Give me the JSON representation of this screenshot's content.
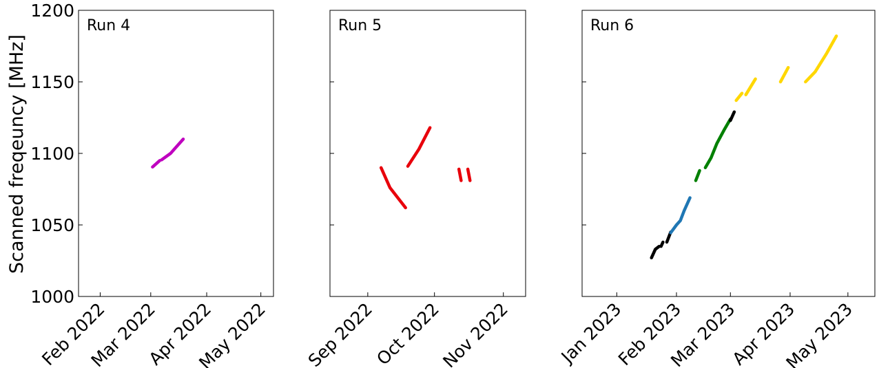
{
  "chart_data": {
    "type": "line",
    "ylabel": "Scanned freqeuncy [MHz]",
    "ylim": [
      1000,
      1200
    ],
    "yticks": [
      1000,
      1050,
      1100,
      1150,
      1200
    ],
    "grid": false,
    "panels": [
      {
        "title": "Run 4",
        "xlim": [
          "2022-01-20",
          "2022-05-08"
        ],
        "xticks": [
          {
            "date": "2022-02-01",
            "label": "Feb 2022"
          },
          {
            "date": "2022-03-01",
            "label": "Mar 2022"
          },
          {
            "date": "2022-04-01",
            "label": "Apr 2022"
          },
          {
            "date": "2022-05-01",
            "label": "May 2022"
          }
        ],
        "segments": [
          {
            "color": "#bf00bf",
            "points": [
              [
                "2022-03-02",
                1090.5
              ],
              [
                "2022-03-06",
                1095.0
              ]
            ]
          },
          {
            "color": "#bf00bf",
            "points": [
              [
                "2022-03-07",
                1095.5
              ],
              [
                "2022-03-12",
                1100.0
              ],
              [
                "2022-03-19",
                1110.0
              ]
            ]
          }
        ]
      },
      {
        "title": "Run 5",
        "xlim": [
          "2022-08-15",
          "2022-11-11"
        ],
        "xticks": [
          {
            "date": "2022-09-01",
            "label": "Sep 2022"
          },
          {
            "date": "2022-10-01",
            "label": "Oct 2022"
          },
          {
            "date": "2022-11-01",
            "label": "Nov 2022"
          }
        ],
        "segments": [
          {
            "color": "#e8000b",
            "points": [
              [
                "2022-09-07",
                1090.0
              ],
              [
                "2022-09-11",
                1076.0
              ],
              [
                "2022-09-14",
                1070.0
              ],
              [
                "2022-09-18",
                1062.0
              ]
            ]
          },
          {
            "color": "#e8000b",
            "points": [
              [
                "2022-09-19",
                1091.0
              ],
              [
                "2022-09-24",
                1103.0
              ],
              [
                "2022-09-29",
                1118.0
              ]
            ]
          },
          {
            "color": "#e8000b",
            "points": [
              [
                "2022-10-12",
                1089.0
              ],
              [
                "2022-10-13",
                1081.0
              ]
            ]
          },
          {
            "color": "#e8000b",
            "points": [
              [
                "2022-10-16",
                1089.0
              ],
              [
                "2022-10-17",
                1081.0
              ]
            ]
          }
        ]
      },
      {
        "title": "Run 6",
        "xlim": [
          "2022-12-14",
          "2023-05-15"
        ],
        "xticks": [
          {
            "date": "2023-01-01",
            "label": "Jan 2023"
          },
          {
            "date": "2023-02-01",
            "label": "Feb 2023"
          },
          {
            "date": "2023-03-01",
            "label": "Mar 2023"
          },
          {
            "date": "2023-04-01",
            "label": "Apr 2023"
          },
          {
            "date": "2023-05-01",
            "label": "May 2023"
          }
        ],
        "segments": [
          {
            "color": "#000000",
            "points": [
              [
                "2023-01-19",
                1027.0
              ],
              [
                "2023-01-21",
                1033.0
              ],
              [
                "2023-01-23",
                1035.0
              ]
            ]
          },
          {
            "color": "#000000",
            "points": [
              [
                "2023-01-24",
                1035.0
              ],
              [
                "2023-01-25",
                1038.0
              ]
            ]
          },
          {
            "color": "#000000",
            "points": [
              [
                "2023-01-27",
                1038.0
              ],
              [
                "2023-01-29",
                1045.0
              ]
            ]
          },
          {
            "color": "#1f77b4",
            "points": [
              [
                "2023-01-29",
                1044.5
              ],
              [
                "2023-02-01",
                1050.0
              ],
              [
                "2023-02-03",
                1053.0
              ],
              [
                "2023-02-05",
                1060.0
              ],
              [
                "2023-02-08",
                1069.0
              ]
            ]
          },
          {
            "color": "#008000",
            "points": [
              [
                "2023-02-11",
                1081.0
              ],
              [
                "2023-02-13",
                1088.0
              ]
            ]
          },
          {
            "color": "#008000",
            "points": [
              [
                "2023-02-16",
                1090.0
              ],
              [
                "2023-02-19",
                1097.0
              ],
              [
                "2023-02-22",
                1107.0
              ],
              [
                "2023-02-26",
                1117.0
              ],
              [
                "2023-03-01",
                1124.0
              ]
            ]
          },
          {
            "color": "#000000",
            "points": [
              [
                "2023-03-01",
                1123.0
              ],
              [
                "2023-03-03",
                1129.0
              ]
            ]
          },
          {
            "color": "#ffd700",
            "points": [
              [
                "2023-03-04",
                1137.0
              ],
              [
                "2023-03-07",
                1142.0
              ]
            ]
          },
          {
            "color": "#ffd700",
            "points": [
              [
                "2023-03-09",
                1141.0
              ],
              [
                "2023-03-14",
                1152.0
              ]
            ]
          },
          {
            "color": "#ffd700",
            "points": [
              [
                "2023-03-27",
                1150.0
              ],
              [
                "2023-03-31",
                1160.0
              ]
            ]
          },
          {
            "color": "#ffd700",
            "points": [
              [
                "2023-04-09",
                1150.0
              ],
              [
                "2023-04-14",
                1157.0
              ],
              [
                "2023-04-20",
                1170.0
              ],
              [
                "2023-04-25",
                1182.0
              ]
            ]
          }
        ]
      }
    ]
  }
}
